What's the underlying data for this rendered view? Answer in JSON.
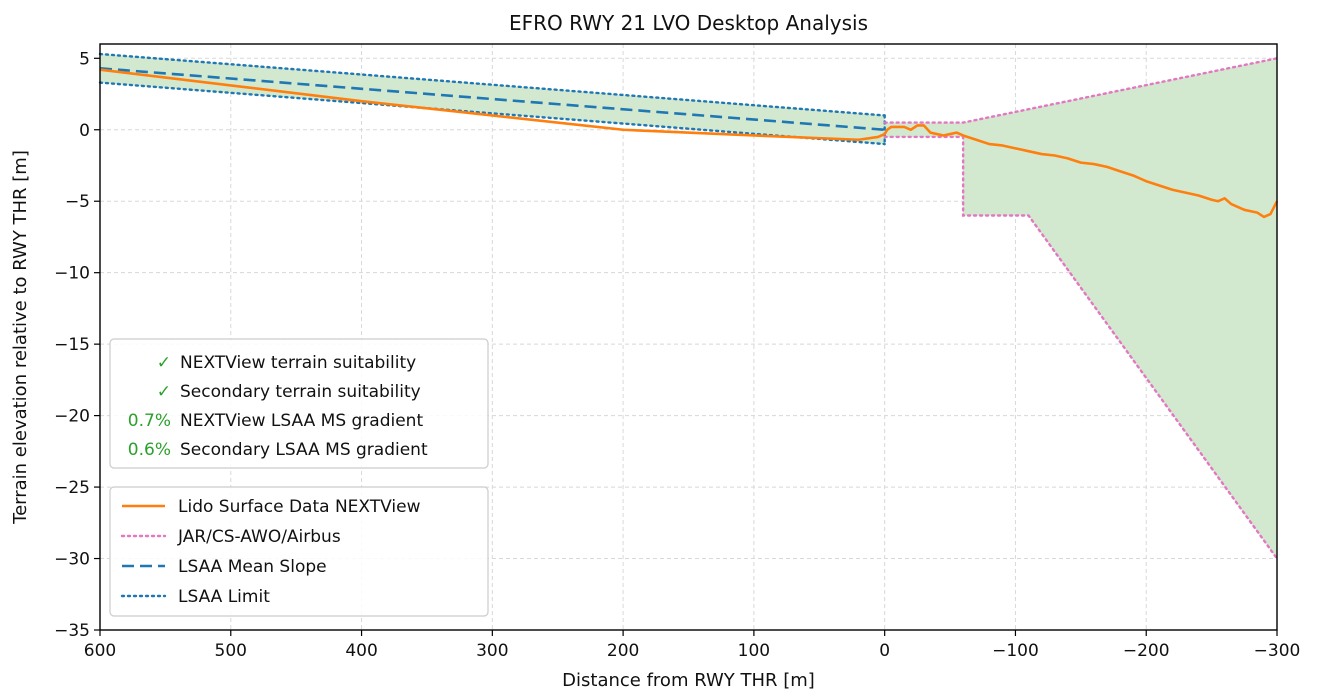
{
  "chart_data": {
    "type": "line",
    "title": "EFRO RWY 21 LVO Desktop Analysis",
    "xlabel": "Distance from RWY THR [m]",
    "ylabel": "Terrain elevation relative to RWY THR [m]",
    "xlim": [
      600,
      -300
    ],
    "ylim": [
      -35,
      6
    ],
    "x_ticks": [
      600,
      500,
      400,
      300,
      200,
      100,
      0,
      -100,
      -200,
      -300
    ],
    "x_tick_labels": [
      "600",
      "500",
      "400",
      "300",
      "200",
      "100",
      "0",
      "−100",
      "−200",
      "−300"
    ],
    "y_ticks": [
      5,
      0,
      -5,
      -10,
      -15,
      -20,
      -25,
      -30,
      -35
    ],
    "y_tick_labels": [
      "5",
      "0",
      "−5",
      "−10",
      "−15",
      "−20",
      "−25",
      "−30",
      "−35"
    ],
    "grid": true,
    "annotations": [
      {
        "mark": "✓",
        "text": "NEXTView  terrain suitability"
      },
      {
        "mark": "✓",
        "text": "Secondary terrain suitability"
      },
      {
        "mark": "0.7%",
        "text": "NEXTView  LSAA MS gradient"
      },
      {
        "mark": "0.6%",
        "text": "Secondary LSAA MS gradient"
      }
    ],
    "legend_placement": "lower-left",
    "series": [
      {
        "name": "Lido Surface Data NEXTView",
        "style": "solid",
        "color": "#ff7f0e",
        "x": [
          600,
          500,
          400,
          300,
          200,
          100,
          20,
          5,
          0,
          -2,
          -5,
          -10,
          -15,
          -20,
          -25,
          -30,
          -35,
          -40,
          -45,
          -50,
          -55,
          -60,
          -70,
          -80,
          -90,
          -100,
          -110,
          -120,
          -130,
          -140,
          -150,
          -160,
          -170,
          -180,
          -190,
          -200,
          -210,
          -220,
          -230,
          -240,
          -250,
          -255,
          -260,
          -265,
          -270,
          -275,
          -280,
          -285,
          -290,
          -295,
          -300
        ],
        "y": [
          4.2,
          3.1,
          2.0,
          1.0,
          0.0,
          -0.4,
          -0.7,
          -0.5,
          -0.3,
          0.0,
          0.2,
          0.2,
          0.2,
          0.0,
          0.3,
          0.3,
          -0.2,
          -0.3,
          -0.4,
          -0.3,
          -0.2,
          -0.4,
          -0.7,
          -1.0,
          -1.1,
          -1.3,
          -1.5,
          -1.7,
          -1.8,
          -2.0,
          -2.3,
          -2.4,
          -2.6,
          -2.9,
          -3.2,
          -3.6,
          -3.9,
          -4.2,
          -4.4,
          -4.6,
          -4.9,
          -5.0,
          -4.8,
          -5.2,
          -5.4,
          -5.6,
          -5.7,
          -5.8,
          -6.1,
          -5.9,
          -5.0
        ]
      },
      {
        "name": "JAR/CS-AWO/Airbus",
        "style": "dotted",
        "color": "#e377c2",
        "upper": {
          "x": [
            0,
            -60,
            -300
          ],
          "y": [
            0.5,
            0.5,
            5.0
          ]
        },
        "lower": {
          "x": [
            0,
            -60,
            -60,
            -110,
            -300
          ],
          "y": [
            -0.5,
            -0.5,
            -6.0,
            -6.0,
            -30.0
          ]
        }
      },
      {
        "name": "LSAA Mean Slope",
        "style": "dashed",
        "color": "#1f77b4",
        "x": [
          600,
          0
        ],
        "y": [
          4.3,
          0.0
        ]
      },
      {
        "name": "LSAA Limit",
        "style": "dotted",
        "color": "#1f77b4",
        "upper": {
          "x": [
            600,
            0
          ],
          "y": [
            5.3,
            1.0
          ]
        },
        "lower": {
          "x": [
            600,
            0
          ],
          "y": [
            3.3,
            -1.0
          ]
        }
      }
    ],
    "colors": {
      "fill": "#d3e9cf",
      "annotation_green": "#2ca02c"
    }
  }
}
